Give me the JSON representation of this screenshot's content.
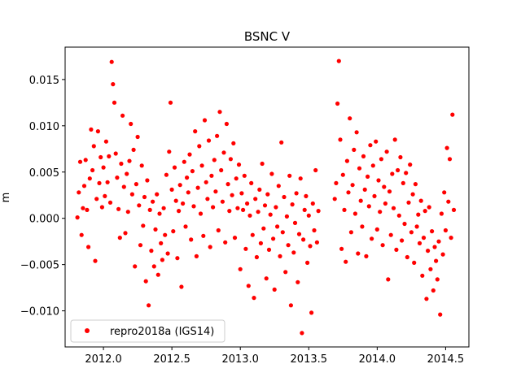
{
  "chart_data": {
    "type": "scatter",
    "title": "BSNC V",
    "xlabel": "",
    "ylabel": "m",
    "xlim": [
      2011.72,
      2014.67
    ],
    "ylim": [
      -0.0139,
      0.0185
    ],
    "xticks": [
      2012.0,
      2012.5,
      2013.0,
      2013.5,
      2014.0,
      2014.5
    ],
    "xtick_labels": [
      "2012.0",
      "2012.5",
      "2013.0",
      "2013.5",
      "2014.0",
      "2014.5"
    ],
    "yticks": [
      -0.01,
      -0.005,
      0.0,
      0.005,
      0.01,
      0.015
    ],
    "ytick_labels": [
      "−0.010",
      "−0.005",
      "0.000",
      "0.005",
      "0.010",
      "0.015"
    ],
    "grid": false,
    "legend_position": "lower-left",
    "series": [
      {
        "name": "repro2018a (IGS14)",
        "color": "#ff0000",
        "marker": "circle",
        "points": [
          [
            2011.81,
            0.0001
          ],
          [
            2011.82,
            0.0028
          ],
          [
            2011.83,
            0.0061
          ],
          [
            2011.84,
            -0.0018
          ],
          [
            2011.85,
            0.0011
          ],
          [
            2011.86,
            0.0035
          ],
          [
            2011.87,
            0.0063
          ],
          [
            2011.88,
            0.0009
          ],
          [
            2011.89,
            -0.0031
          ],
          [
            2011.9,
            0.0043
          ],
          [
            2011.91,
            0.0096
          ],
          [
            2011.92,
            0.0052
          ],
          [
            2011.93,
            0.0078
          ],
          [
            2011.94,
            -0.0046
          ],
          [
            2011.95,
            0.0021
          ],
          [
            2011.96,
            0.0094
          ],
          [
            2011.97,
            0.0038
          ],
          [
            2011.98,
            0.0066
          ],
          [
            2011.99,
            0.0012
          ],
          [
            2012.0,
            0.0055
          ],
          [
            2012.01,
            0.0024
          ],
          [
            2012.02,
            0.0083
          ],
          [
            2012.03,
            0.0039
          ],
          [
            2012.04,
            0.0067
          ],
          [
            2012.05,
            0.0017
          ],
          [
            2012.06,
            0.0169
          ],
          [
            2012.07,
            0.0145
          ],
          [
            2012.08,
            0.0125
          ],
          [
            2012.09,
            0.007
          ],
          [
            2012.1,
            0.0044
          ],
          [
            2012.11,
            0.001
          ],
          [
            2012.12,
            -0.0021
          ],
          [
            2012.13,
            0.0059
          ],
          [
            2012.14,
            0.0111
          ],
          [
            2012.15,
            0.0034
          ],
          [
            2012.16,
            -0.0016
          ],
          [
            2012.17,
            0.0048
          ],
          [
            2012.18,
            0.0007
          ],
          [
            2012.19,
            0.0062
          ],
          [
            2012.2,
            0.0102
          ],
          [
            2012.21,
            0.0026
          ],
          [
            2012.22,
            0.0074
          ],
          [
            2012.23,
            -0.0052
          ],
          [
            2012.24,
            0.0037
          ],
          [
            2012.25,
            0.0088
          ],
          [
            2012.26,
            0.0014
          ],
          [
            2012.27,
            -0.0029
          ],
          [
            2012.28,
            0.0057
          ],
          [
            2012.29,
            -0.0008
          ],
          [
            2012.3,
            0.0023
          ],
          [
            2012.31,
            -0.0068
          ],
          [
            2012.32,
            0.0041
          ],
          [
            2012.33,
            -0.0094
          ],
          [
            2012.34,
            0.0009
          ],
          [
            2012.35,
            -0.0035
          ],
          [
            2012.36,
            0.0018
          ],
          [
            2012.37,
            -0.0052
          ],
          [
            2012.38,
            -0.0012
          ],
          [
            2012.39,
            0.0026
          ],
          [
            2012.4,
            -0.0061
          ],
          [
            2012.41,
            0.0005
          ],
          [
            2012.42,
            -0.0027
          ],
          [
            2012.43,
            -0.0045
          ],
          [
            2012.44,
            0.0011
          ],
          [
            2012.45,
            -0.0018
          ],
          [
            2012.46,
            0.0047
          ],
          [
            2012.47,
            -0.0038
          ],
          [
            2012.48,
            0.0072
          ],
          [
            2012.49,
            0.0125
          ],
          [
            2012.5,
            0.0031
          ],
          [
            2012.51,
            -0.0014
          ],
          [
            2012.52,
            0.0055
          ],
          [
            2012.53,
            0.0019
          ],
          [
            2012.54,
            -0.0043
          ],
          [
            2012.55,
            0.0008
          ],
          [
            2012.56,
            0.0036
          ],
          [
            2012.57,
            -0.0074
          ],
          [
            2012.58,
            0.0016
          ],
          [
            2012.59,
            0.0061
          ],
          [
            2012.6,
            -0.0009
          ],
          [
            2012.61,
            0.0044
          ],
          [
            2012.62,
            0.0028
          ],
          [
            2012.63,
            0.0069
          ],
          [
            2012.64,
            -0.0023
          ],
          [
            2012.65,
            0.0051
          ],
          [
            2012.66,
            0.0013
          ],
          [
            2012.67,
            0.0094
          ],
          [
            2012.68,
            -0.0041
          ],
          [
            2012.69,
            0.0033
          ],
          [
            2012.7,
            0.0078
          ],
          [
            2012.71,
            0.0005
          ],
          [
            2012.72,
            0.0057
          ],
          [
            2012.73,
            -0.0019
          ],
          [
            2012.74,
            0.0106
          ],
          [
            2012.75,
            0.0039
          ],
          [
            2012.76,
            0.0021
          ],
          [
            2012.77,
            0.0084
          ],
          [
            2012.78,
            -0.0031
          ],
          [
            2012.79,
            0.0046
          ],
          [
            2012.8,
            0.0012
          ],
          [
            2012.81,
            0.0063
          ],
          [
            2012.82,
            0.0029
          ],
          [
            2012.83,
            0.0089
          ],
          [
            2012.84,
            -0.0013
          ],
          [
            2012.85,
            0.0115
          ],
          [
            2012.86,
            0.0052
          ],
          [
            2012.87,
            0.0018
          ],
          [
            2012.88,
            0.0071
          ],
          [
            2012.89,
            -0.0026
          ],
          [
            2012.9,
            0.0102
          ],
          [
            2012.91,
            0.0037
          ],
          [
            2012.92,
            0.0008
          ],
          [
            2012.93,
            0.0064
          ],
          [
            2012.94,
            0.0025
          ],
          [
            2012.95,
            0.0081
          ],
          [
            2012.96,
            -0.0021
          ],
          [
            2012.97,
            0.0043
          ],
          [
            2012.98,
            0.0011
          ],
          [
            2012.99,
            0.0058
          ],
          [
            2013.0,
            -0.0055
          ],
          [
            2013.01,
            0.0027
          ],
          [
            2013.02,
            0.0009
          ],
          [
            2013.03,
            0.0046
          ],
          [
            2013.04,
            -0.0033
          ],
          [
            2013.05,
            0.0016
          ],
          [
            2013.06,
            -0.0073
          ],
          [
            2013.07,
            0.0003
          ],
          [
            2013.08,
            0.0038
          ],
          [
            2013.09,
            -0.0018
          ],
          [
            2013.1,
            -0.0086
          ],
          [
            2013.11,
            0.0021
          ],
          [
            2013.12,
            -0.0042
          ],
          [
            2013.13,
            0.0007
          ],
          [
            2013.14,
            0.0031
          ],
          [
            2013.15,
            -0.0027
          ],
          [
            2013.16,
            0.0059
          ],
          [
            2013.17,
            -0.0011
          ],
          [
            2013.18,
            0.0014
          ],
          [
            2013.19,
            -0.0065
          ],
          [
            2013.2,
            0.0026
          ],
          [
            2013.21,
            -0.0034
          ],
          [
            2013.22,
            0.0004
          ],
          [
            2013.23,
            0.0048
          ],
          [
            2013.24,
            -0.0022
          ],
          [
            2013.25,
            -0.0077
          ],
          [
            2013.26,
            0.0012
          ],
          [
            2013.27,
            -0.0009
          ],
          [
            2013.28,
            0.0035
          ],
          [
            2013.29,
            -0.0041
          ],
          [
            2013.3,
            0.0082
          ],
          [
            2013.31,
            -0.0015
          ],
          [
            2013.32,
            0.0023
          ],
          [
            2013.33,
            -0.0058
          ],
          [
            2013.34,
            0.0002
          ],
          [
            2013.35,
            -0.0029
          ],
          [
            2013.36,
            0.0046
          ],
          [
            2013.37,
            -0.0094
          ],
          [
            2013.38,
            0.0015
          ],
          [
            2013.39,
            -0.0037
          ],
          [
            2013.4,
            -0.0005
          ],
          [
            2013.41,
            0.0027
          ],
          [
            2013.42,
            -0.0069
          ],
          [
            2013.43,
            -0.0017
          ],
          [
            2013.44,
            0.0043
          ],
          [
            2013.45,
            -0.0124
          ],
          [
            2013.46,
            -0.0023
          ],
          [
            2013.47,
            0.0009
          ],
          [
            2013.48,
            0.0024
          ],
          [
            2013.49,
            -0.0048
          ],
          [
            2013.5,
            0.0003
          ],
          [
            2013.51,
            -0.003
          ],
          [
            2013.52,
            -0.0102
          ],
          [
            2013.53,
            0.0016
          ],
          [
            2013.54,
            -0.0013
          ],
          [
            2013.55,
            0.0052
          ],
          [
            2013.56,
            -0.0026
          ],
          [
            2013.57,
            0.0008
          ],
          [
            2013.69,
            0.0021
          ],
          [
            2013.7,
            0.0038
          ],
          [
            2013.71,
            0.0124
          ],
          [
            2013.72,
            0.017
          ],
          [
            2013.73,
            0.0085
          ],
          [
            2013.74,
            -0.0033
          ],
          [
            2013.75,
            0.0047
          ],
          [
            2013.76,
            0.0009
          ],
          [
            2013.77,
            -0.0047
          ],
          [
            2013.78,
            0.0062
          ],
          [
            2013.79,
            0.0028
          ],
          [
            2013.8,
            0.0108
          ],
          [
            2013.81,
            -0.0015
          ],
          [
            2013.82,
            0.0036
          ],
          [
            2013.83,
            0.0074
          ],
          [
            2013.84,
            0.0005
          ],
          [
            2013.85,
            0.0093
          ],
          [
            2013.86,
            -0.0038
          ],
          [
            2013.87,
            0.0054
          ],
          [
            2013.88,
            0.0019
          ],
          [
            2013.89,
            -0.0009
          ],
          [
            2013.9,
            0.0067
          ],
          [
            2013.91,
            0.0031
          ],
          [
            2013.92,
            -0.0041
          ],
          [
            2013.93,
            0.0045
          ],
          [
            2013.94,
            0.0013
          ],
          [
            2013.95,
            0.0079
          ],
          [
            2013.96,
            -0.0022
          ],
          [
            2013.97,
            0.0057
          ],
          [
            2013.98,
            0.0024
          ],
          [
            2013.99,
            0.0083
          ],
          [
            2014.0,
            -0.0012
          ],
          [
            2014.01,
            0.0041
          ],
          [
            2014.02,
            0.0007
          ],
          [
            2014.03,
            0.0064
          ],
          [
            2014.04,
            -0.0029
          ],
          [
            2014.05,
            0.0034
          ],
          [
            2014.06,
            0.0016
          ],
          [
            2014.07,
            0.0072
          ],
          [
            2014.08,
            -0.0066
          ],
          [
            2014.09,
            0.0029
          ],
          [
            2014.1,
            -0.0018
          ],
          [
            2014.11,
            0.0048
          ],
          [
            2014.12,
            0.0011
          ],
          [
            2014.13,
            0.0085
          ],
          [
            2014.14,
            -0.0034
          ],
          [
            2014.15,
            0.0052
          ],
          [
            2014.16,
            0.0003
          ],
          [
            2014.17,
            0.0066
          ],
          [
            2014.18,
            -0.0024
          ],
          [
            2014.19,
            0.0038
          ],
          [
            2014.2,
            -0.0006
          ],
          [
            2014.21,
            0.0049
          ],
          [
            2014.22,
            -0.0042
          ],
          [
            2014.23,
            0.0017
          ],
          [
            2014.24,
            0.0058
          ],
          [
            2014.25,
            -0.0015
          ],
          [
            2014.26,
            0.0026
          ],
          [
            2014.27,
            -0.0048
          ],
          [
            2014.28,
            0.0037
          ],
          [
            2014.29,
            -0.0009
          ],
          [
            2014.3,
            0.0004
          ],
          [
            2014.31,
            -0.0027
          ],
          [
            2014.32,
            0.0019
          ],
          [
            2014.33,
            -0.0062
          ],
          [
            2014.34,
            -0.0021
          ],
          [
            2014.35,
            0.0008
          ],
          [
            2014.36,
            -0.0087
          ],
          [
            2014.37,
            -0.0035
          ],
          [
            2014.38,
            0.0012
          ],
          [
            2014.39,
            -0.0055
          ],
          [
            2014.4,
            -0.0014
          ],
          [
            2014.41,
            -0.0078
          ],
          [
            2014.42,
            -0.0031
          ],
          [
            2014.43,
            -0.0046
          ],
          [
            2014.44,
            -0.0066
          ],
          [
            2014.45,
            -0.0025
          ],
          [
            2014.46,
            -0.0104
          ],
          [
            2014.47,
            0.0005
          ],
          [
            2014.48,
            -0.0039
          ],
          [
            2014.49,
            0.0028
          ],
          [
            2014.5,
            -0.0013
          ],
          [
            2014.51,
            0.0076
          ],
          [
            2014.52,
            0.0018
          ],
          [
            2014.53,
            0.0064
          ],
          [
            2014.54,
            -0.0021
          ],
          [
            2014.55,
            0.0112
          ],
          [
            2014.56,
            0.0009
          ]
        ]
      }
    ]
  }
}
